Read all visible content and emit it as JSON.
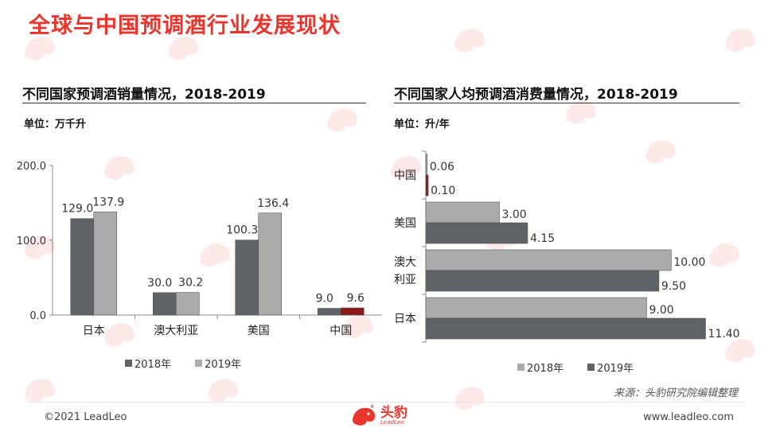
{
  "page_title": "全球与中国预调酒行业发展现状",
  "left_panel": {
    "title": "不同国家预调酒销量情况，2018-2019",
    "unit": "单位：万千升"
  },
  "right_panel": {
    "title": "不同国家人均预调酒消费量情况，2018-2019",
    "unit": "单位：升/年"
  },
  "chart_data": [
    {
      "type": "bar",
      "orientation": "vertical",
      "categories": [
        "日本",
        "澳大利亚",
        "美国",
        "中国"
      ],
      "series": [
        {
          "name": "2018年",
          "values": [
            129.0,
            30.0,
            100.3,
            9.0
          ],
          "labels": [
            "129.0",
            "30.0",
            "100.3",
            "9.0"
          ]
        },
        {
          "name": "2019年",
          "values": [
            137.9,
            30.2,
            136.4,
            9.6
          ],
          "labels": [
            "137.9",
            "30.2",
            "136.4",
            "9.6"
          ]
        }
      ],
      "ylim": [
        0,
        200
      ],
      "yticks": [
        "0.0",
        "100.0",
        "200.0"
      ],
      "legend_position": "bottom",
      "colors": {
        "2018年": "#5f6368",
        "2019年": "#a9abad",
        "highlight": "#8b1a1a"
      }
    },
    {
      "type": "bar",
      "orientation": "horizontal",
      "categories": [
        "中国",
        "美国",
        "澳大利亚",
        "日本"
      ],
      "category_labels": [
        [
          "中国"
        ],
        [
          "美国"
        ],
        [
          "澳大",
          "利亚"
        ],
        [
          "日本"
        ]
      ],
      "series": [
        {
          "name": "2018年",
          "values": [
            0.06,
            3.0,
            10.0,
            9.0
          ],
          "labels": [
            "0.06",
            "3.00",
            "10.00",
            "9.00"
          ]
        },
        {
          "name": "2019年",
          "values": [
            0.1,
            4.15,
            9.5,
            11.4
          ],
          "labels": [
            "0.10",
            "4.15",
            "9.50",
            "11.40"
          ]
        }
      ],
      "xlim": [
        0,
        12
      ],
      "legend_position": "bottom",
      "colors": {
        "2018年": "#a9abad",
        "2019年": "#5f6368",
        "highlight": "#8b1a1a"
      }
    }
  ],
  "source": "来源：头豹研究院编辑整理",
  "footer": {
    "copyright": "©2021 LeadLeo",
    "logo_text": "头豹",
    "logo_sub": "LeadLeo",
    "url": "www.leadleo.com"
  },
  "watermark": {
    "text": "头豹",
    "sub": "LeadLeo"
  }
}
